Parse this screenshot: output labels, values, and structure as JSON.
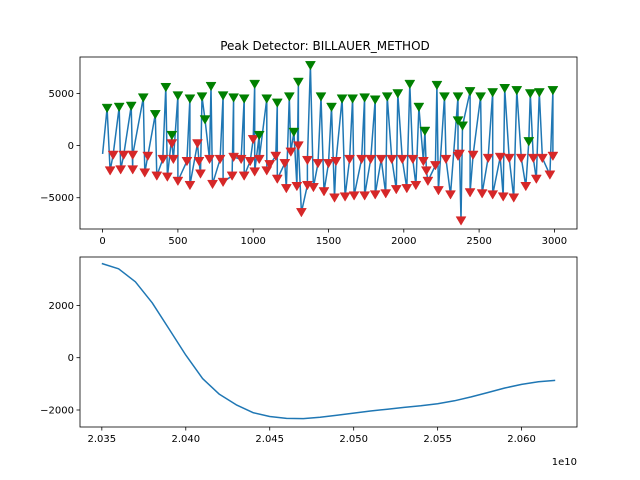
{
  "figure": {
    "title": "Peak Detector: BILLAUER_METHOD"
  },
  "chart_data": [
    {
      "type": "line",
      "title": "Peak Detector: BILLAUER_METHOD",
      "xlabel": "",
      "ylabel": "",
      "xlim": [
        -150,
        3150
      ],
      "ylim": [
        -8000,
        8500
      ],
      "xticks": [
        0,
        500,
        1000,
        1500,
        2000,
        2500,
        3000
      ],
      "yticks": [
        -5000,
        0,
        5000
      ],
      "grid": false,
      "line_color": "#1f77b4",
      "peaks": {
        "color": "#008000",
        "points": [
          [
            30,
            3600
          ],
          [
            110,
            3700
          ],
          [
            190,
            3800
          ],
          [
            270,
            4600
          ],
          [
            350,
            3000
          ],
          [
            420,
            5600
          ],
          [
            500,
            4800
          ],
          [
            580,
            4500
          ],
          [
            660,
            4700
          ],
          [
            720,
            5700
          ],
          [
            800,
            4800
          ],
          [
            870,
            4600
          ],
          [
            940,
            4500
          ],
          [
            1010,
            5900
          ],
          [
            1090,
            4500
          ],
          [
            1160,
            4100
          ],
          [
            1240,
            4700
          ],
          [
            1300,
            6100
          ],
          [
            1380,
            7700
          ],
          [
            1450,
            4700
          ],
          [
            1520,
            3700
          ],
          [
            1590,
            4500
          ],
          [
            1660,
            4500
          ],
          [
            1740,
            4600
          ],
          [
            1810,
            4400
          ],
          [
            1890,
            4700
          ],
          [
            1960,
            5000
          ],
          [
            2040,
            5900
          ],
          [
            2100,
            3700
          ],
          [
            2220,
            5800
          ],
          [
            2270,
            4700
          ],
          [
            2360,
            4700
          ],
          [
            2440,
            5200
          ],
          [
            2510,
            4700
          ],
          [
            2590,
            5100
          ],
          [
            2670,
            5500
          ],
          [
            2750,
            5300
          ],
          [
            2840,
            5000
          ],
          [
            2900,
            5100
          ],
          [
            2990,
            5300
          ],
          [
            460,
            1000
          ],
          [
            680,
            2500
          ],
          [
            1040,
            1000
          ],
          [
            1270,
            1300
          ],
          [
            2140,
            1400
          ],
          [
            2360,
            2400
          ],
          [
            2390,
            1900
          ],
          [
            2830,
            400
          ]
        ]
      },
      "troughs": {
        "color": "#d62728",
        "points": [
          [
            50,
            -2400
          ],
          [
            120,
            -2300
          ],
          [
            200,
            -2300
          ],
          [
            280,
            -2600
          ],
          [
            360,
            -2900
          ],
          [
            430,
            -3000
          ],
          [
            500,
            -3400
          ],
          [
            580,
            -3800
          ],
          [
            650,
            -2700
          ],
          [
            730,
            -3700
          ],
          [
            800,
            -3500
          ],
          [
            860,
            -2900
          ],
          [
            940,
            -2900
          ],
          [
            1010,
            -2500
          ],
          [
            1090,
            -2400
          ],
          [
            1160,
            -3200
          ],
          [
            1220,
            -4100
          ],
          [
            1290,
            -3900
          ],
          [
            1320,
            -6400
          ],
          [
            1360,
            -3800
          ],
          [
            1400,
            -4000
          ],
          [
            1470,
            -4400
          ],
          [
            1540,
            -5000
          ],
          [
            1610,
            -4900
          ],
          [
            1670,
            -4800
          ],
          [
            1740,
            -4800
          ],
          [
            1810,
            -4700
          ],
          [
            1880,
            -4600
          ],
          [
            1950,
            -4200
          ],
          [
            2020,
            -4100
          ],
          [
            2080,
            -3800
          ],
          [
            2160,
            -3400
          ],
          [
            2230,
            -4300
          ],
          [
            2310,
            -4700
          ],
          [
            2380,
            -7200
          ],
          [
            2440,
            -4500
          ],
          [
            2520,
            -4600
          ],
          [
            2590,
            -4700
          ],
          [
            2660,
            -4900
          ],
          [
            2730,
            -5000
          ],
          [
            2810,
            -3900
          ],
          [
            2880,
            -3200
          ],
          [
            2970,
            -2800
          ],
          [
            70,
            -900
          ],
          [
            140,
            -900
          ],
          [
            200,
            -900
          ],
          [
            300,
            -1000
          ],
          [
            400,
            -1300
          ],
          [
            470,
            -1300
          ],
          [
            560,
            -1500
          ],
          [
            640,
            -1500
          ],
          [
            710,
            -1300
          ],
          [
            780,
            -1300
          ],
          [
            870,
            -1100
          ],
          [
            920,
            -1300
          ],
          [
            980,
            -1500
          ],
          [
            1040,
            -1300
          ],
          [
            1110,
            -1800
          ],
          [
            1150,
            -1000
          ],
          [
            1210,
            -1700
          ],
          [
            1250,
            -600
          ],
          [
            1360,
            -1400
          ],
          [
            1430,
            -1700
          ],
          [
            1500,
            -1700
          ],
          [
            1550,
            -1500
          ],
          [
            1640,
            -1300
          ],
          [
            1720,
            -1300
          ],
          [
            1780,
            -1300
          ],
          [
            1850,
            -1300
          ],
          [
            1920,
            -1300
          ],
          [
            1990,
            -1300
          ],
          [
            2060,
            -1300
          ],
          [
            2130,
            -1500
          ],
          [
            2150,
            -2400
          ],
          [
            2210,
            -1900
          ],
          [
            2280,
            -1300
          ],
          [
            2360,
            -1000
          ],
          [
            2370,
            -800
          ],
          [
            2460,
            -900
          ],
          [
            2560,
            -1200
          ],
          [
            2640,
            -1100
          ],
          [
            2700,
            -1200
          ],
          [
            2780,
            -1200
          ],
          [
            2860,
            -1200
          ],
          [
            2920,
            -1200
          ],
          [
            2990,
            -1000
          ],
          [
            1300,
            0
          ],
          [
            1000,
            600
          ],
          [
            460,
            200
          ],
          [
            630,
            200
          ]
        ]
      },
      "peak_marker": "triangle-down"
    },
    {
      "type": "line",
      "title": "",
      "xlabel": "",
      "ylabel": "",
      "offset_label": "1e10",
      "xlim": [
        2.0337,
        2.0633
      ],
      "ylim": [
        -2650,
        3850
      ],
      "xticks": [
        2.035,
        2.04,
        2.045,
        2.05,
        2.055,
        2.06
      ],
      "xtick_labels": [
        "2.035",
        "2.040",
        "2.045",
        "2.050",
        "2.055",
        "2.060"
      ],
      "yticks": [
        -2000,
        0,
        2000
      ],
      "grid": false,
      "line_color": "#1f77b4",
      "x": [
        2.035,
        2.036,
        2.037,
        2.038,
        2.039,
        2.04,
        2.041,
        2.042,
        2.043,
        2.044,
        2.045,
        2.046,
        2.047,
        2.048,
        2.049,
        2.05,
        2.051,
        2.052,
        2.053,
        2.054,
        2.055,
        2.056,
        2.057,
        2.058,
        2.059,
        2.06,
        2.061,
        2.062
      ],
      "y": [
        3600,
        3400,
        2900,
        2100,
        1100,
        100,
        -800,
        -1400,
        -1800,
        -2100,
        -2250,
        -2320,
        -2330,
        -2280,
        -2200,
        -2120,
        -2040,
        -1970,
        -1900,
        -1840,
        -1760,
        -1650,
        -1500,
        -1330,
        -1160,
        -1020,
        -920,
        -870
      ]
    }
  ]
}
